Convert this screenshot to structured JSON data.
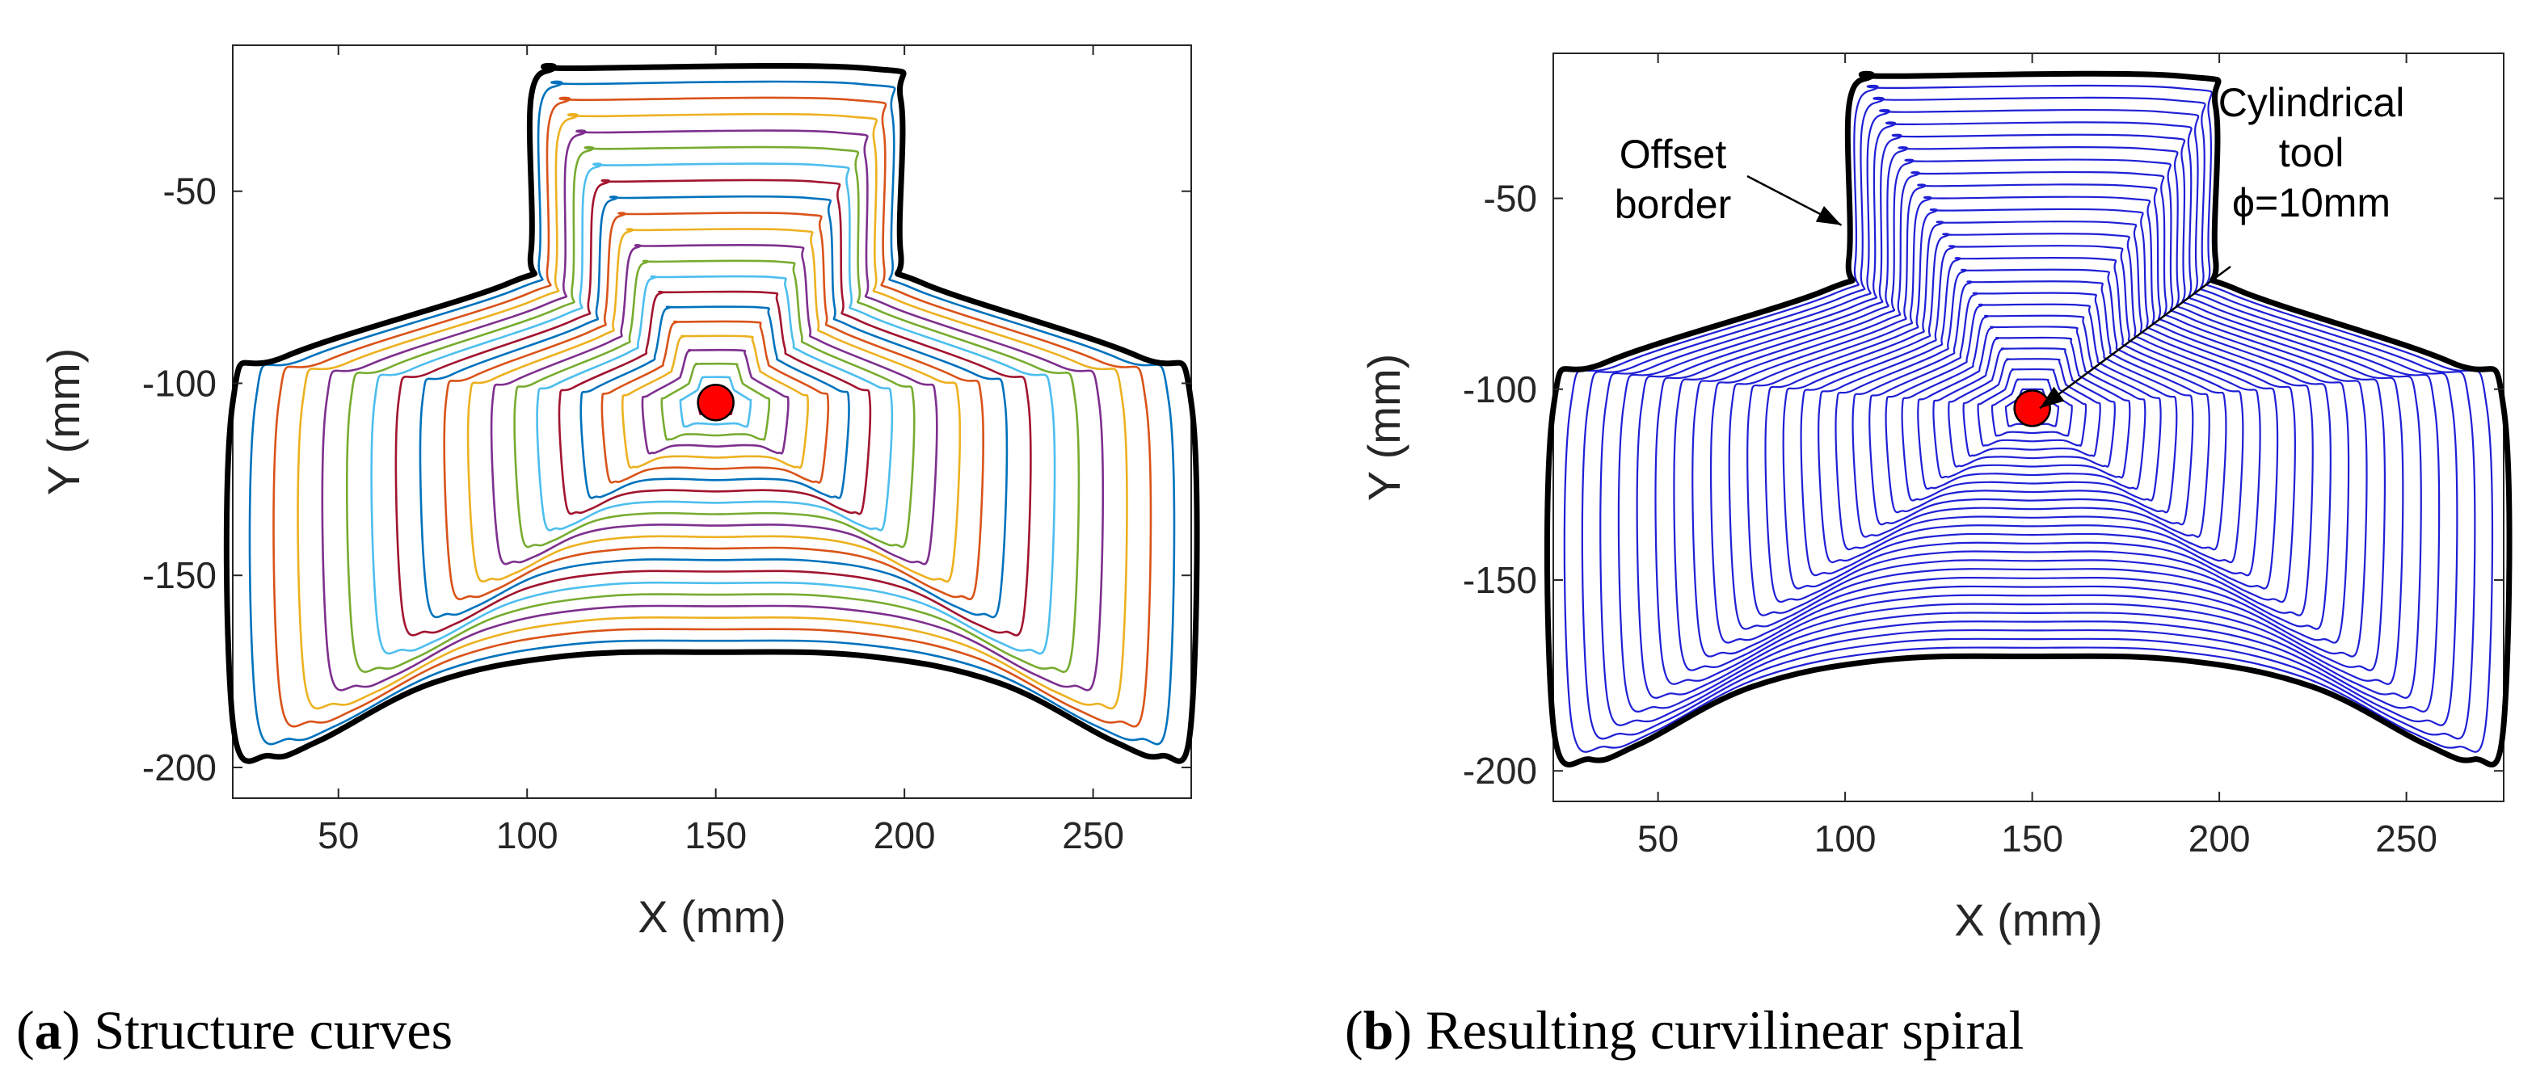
{
  "chart_data": [
    {
      "type": "line",
      "panel": "a",
      "caption_letter": "a",
      "caption_text": "Structure curves",
      "xlabel": "X (mm)",
      "ylabel": "Y (mm)",
      "xlim": [
        22,
        276
      ],
      "ylim": [
        -208,
        -12
      ],
      "xticks": [
        50,
        100,
        150,
        200,
        250
      ],
      "yticks": [
        -50,
        -100,
        -150,
        -200
      ],
      "grid": false,
      "series_style": "multicolor",
      "curve_count": 21,
      "palette": [
        "#0072BD",
        "#D95319",
        "#EDB120",
        "#7E2F8E",
        "#77AC30",
        "#4DBEEE",
        "#A2142F"
      ],
      "border_color": "#000000",
      "tool_center": {
        "x": 150,
        "y": -105
      },
      "tool_color": "#ff0000",
      "annotations": []
    },
    {
      "type": "line",
      "panel": "b",
      "caption_letter": "b",
      "caption_text": "Resulting curvilinear spiral",
      "xlabel": "X (mm)",
      "ylabel": "Y (mm)",
      "xlim": [
        22,
        276
      ],
      "ylim": [
        -208,
        -12
      ],
      "xticks": [
        50,
        100,
        150,
        200,
        250
      ],
      "yticks": [
        -50,
        -100,
        -150,
        -200
      ],
      "grid": false,
      "series_style": "spiral",
      "curve_count": 28,
      "spiral_color": "#1f1fd6",
      "border_color": "#000000",
      "tool_center": {
        "x": 150,
        "y": -105
      },
      "tool_color": "#ff0000",
      "annotations": [
        {
          "name": "offset-border-label",
          "lines": [
            "Offset",
            "border"
          ],
          "target": {
            "x": 99,
            "y": -57
          }
        },
        {
          "name": "cylindrical-tool-label",
          "lines": [
            "Cylindrical",
            "tool",
            "ϕ=10mm"
          ],
          "target": {
            "x": 152,
            "y": -105
          }
        }
      ]
    }
  ],
  "shape_outline_mm": [
    [
      112,
      -18
    ],
    [
      190,
      -18
    ],
    [
      199,
      -26
    ],
    [
      199,
      -66
    ],
    [
      205,
      -74
    ],
    [
      262,
      -93
    ],
    [
      276,
      -105
    ],
    [
      276,
      -188
    ],
    [
      268,
      -197
    ],
    [
      255,
      -193
    ],
    [
      225,
      -178
    ],
    [
      190,
      -171
    ],
    [
      150,
      -170
    ],
    [
      110,
      -171
    ],
    [
      75,
      -178
    ],
    [
      45,
      -193
    ],
    [
      32,
      -197
    ],
    [
      22,
      -188
    ],
    [
      22,
      -105
    ],
    [
      36,
      -93
    ],
    [
      95,
      -74
    ],
    [
      101,
      -66
    ],
    [
      101,
      -26
    ],
    [
      107,
      -18
    ]
  ]
}
